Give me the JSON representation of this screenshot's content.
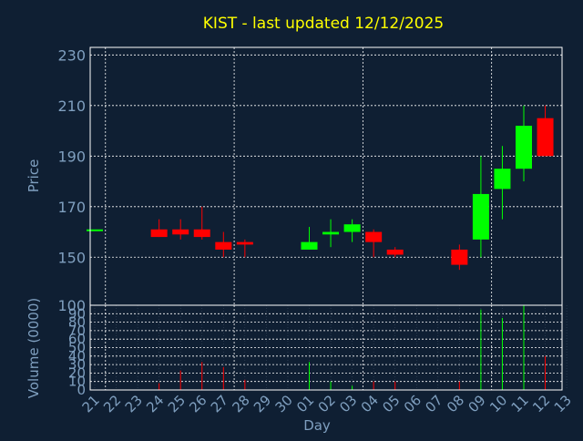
{
  "chart_data": {
    "type": "candlestick",
    "title": "KIST - last updated 12/12/2025",
    "xlabel": "Day",
    "ylabel_price": "Price",
    "ylabel_volume": "Volume (0000)",
    "price_ylim": [
      131,
      233
    ],
    "price_ticks": [
      150,
      170,
      190,
      210,
      230
    ],
    "volume_ylim": [
      0,
      100
    ],
    "volume_ticks": [
      0,
      10,
      20,
      30,
      40,
      50,
      60,
      70,
      80,
      90
    ],
    "volume_top_label": "100",
    "grid": true,
    "colors": {
      "background": "#0f1f33",
      "frame": "#ffffff",
      "grid": "#ffffff",
      "axis_text": "#7f9fbf",
      "title": "#ffff00",
      "up": "#00ff00",
      "down": "#ff0000"
    },
    "days": [
      "21",
      "22",
      "23",
      "24",
      "25",
      "26",
      "27",
      "28",
      "29",
      "30",
      "01",
      "02",
      "03",
      "04",
      "05",
      "06",
      "07",
      "08",
      "09",
      "10",
      "11",
      "12",
      "13"
    ],
    "candles": [
      {
        "day": "21",
        "open": 161,
        "high": 161,
        "low": 161,
        "close": 161,
        "volume": 0
      },
      {
        "day": "24",
        "open": 161,
        "high": 165,
        "low": 158,
        "close": 158,
        "volume": 8
      },
      {
        "day": "25",
        "open": 161,
        "high": 165,
        "low": 157,
        "close": 159,
        "volume": 23
      },
      {
        "day": "26",
        "open": 161,
        "high": 170,
        "low": 157,
        "close": 158,
        "volume": 33
      },
      {
        "day": "27",
        "open": 156,
        "high": 160,
        "low": 150,
        "close": 153,
        "volume": 27
      },
      {
        "day": "28",
        "open": 156,
        "high": 157,
        "low": 150,
        "close": 155,
        "volume": 12
      },
      {
        "day": "01",
        "open": 153,
        "high": 162,
        "low": 153,
        "close": 156,
        "volume": 33
      },
      {
        "day": "02",
        "open": 159,
        "high": 165,
        "low": 154,
        "close": 160,
        "volume": 10
      },
      {
        "day": "03",
        "open": 160,
        "high": 165,
        "low": 156,
        "close": 163,
        "volume": 5
      },
      {
        "day": "04",
        "open": 160,
        "high": 161,
        "low": 150,
        "close": 156,
        "volume": 10
      },
      {
        "day": "05",
        "open": 153,
        "high": 154,
        "low": 150,
        "close": 151,
        "volume": 10
      },
      {
        "day": "08",
        "open": 153,
        "high": 155,
        "low": 145,
        "close": 147,
        "volume": 10
      },
      {
        "day": "09",
        "open": 157,
        "high": 190,
        "low": 150,
        "close": 175,
        "volume": 95
      },
      {
        "day": "10",
        "open": 177,
        "high": 194,
        "low": 165,
        "close": 185,
        "volume": 85
      },
      {
        "day": "11",
        "open": 185,
        "high": 210,
        "low": 180,
        "close": 202,
        "volume": 100
      },
      {
        "day": "12",
        "open": 205,
        "high": 210,
        "low": 190,
        "close": 190,
        "volume": 40
      }
    ]
  }
}
